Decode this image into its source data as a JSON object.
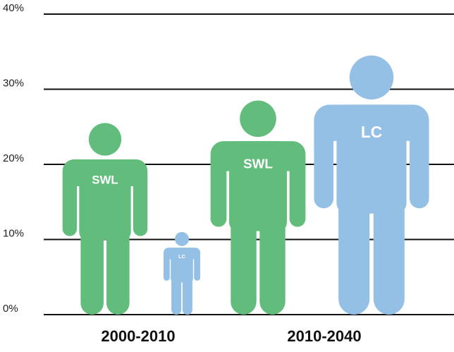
{
  "chart_data": {
    "type": "pictograph",
    "categories": [
      "2000-2010",
      "2010-2040"
    ],
    "series": [
      {
        "name": "SWL",
        "color": "#62bd7c",
        "values": [
          25.5,
          28.5
        ]
      },
      {
        "name": "LC",
        "color": "#95c0e6",
        "values": [
          11,
          34.5
        ]
      }
    ],
    "ylim": [
      0,
      40
    ],
    "yticks": [
      {
        "value": 0,
        "label": "0%"
      },
      {
        "value": 10,
        "label": "10%"
      },
      {
        "value": 20,
        "label": "20%"
      },
      {
        "value": 30,
        "label": "30%"
      },
      {
        "value": 40,
        "label": "40%"
      }
    ],
    "grid": true
  }
}
